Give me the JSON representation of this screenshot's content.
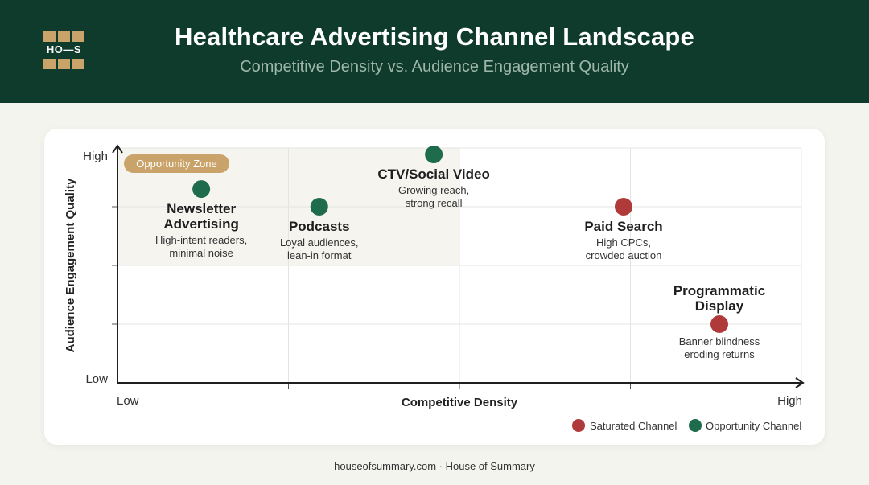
{
  "header": {
    "logo_text": "HO—S",
    "title": "Healthcare Advertising Channel Landscape",
    "subtitle": "Competitive Density vs. Audience Engagement Quality"
  },
  "colors": {
    "header_bg": "#0f3b2c",
    "accent_gold": "#c9a36a",
    "opportunity": "#1f6b4e",
    "saturated": "#b03a3a",
    "zone_fill": "#f5f4ef"
  },
  "chart_data": {
    "type": "scatter",
    "title": "Healthcare Advertising Channel Landscape",
    "subtitle": "Competitive Density vs. Audience Engagement Quality",
    "xlabel": "Competitive Density",
    "ylabel": "Audience Engagement Quality",
    "x_tick_labels": {
      "low": "Low",
      "high": "High"
    },
    "y_tick_labels": {
      "low": "Low",
      "high": "High"
    },
    "xlim": [
      0,
      4
    ],
    "ylim": [
      0,
      4
    ],
    "grid": true,
    "legend_position": "bottom-right",
    "legend": [
      {
        "category": "saturated",
        "label": "Saturated Channel"
      },
      {
        "category": "opportunity",
        "label": "Opportunity Channel"
      }
    ],
    "zone": {
      "label": "Opportunity Zone",
      "x_range": [
        0,
        2
      ],
      "y_range": [
        2,
        4
      ]
    },
    "points": [
      {
        "name": "Newsletter Advertising",
        "line1": "Newsletter",
        "line2": "Advertising",
        "desc1": "High-intent readers,",
        "desc2": "minimal noise",
        "x": 0.49,
        "y": 3.3,
        "category": "opportunity"
      },
      {
        "name": "Podcasts",
        "line1": "Podcasts",
        "line2": "",
        "desc1": "Loyal audiences,",
        "desc2": "lean-in format",
        "x": 1.18,
        "y": 3.0,
        "category": "opportunity"
      },
      {
        "name": "CTV/Social Video",
        "line1": "CTV/Social Video",
        "line2": "",
        "desc1": "Growing reach,",
        "desc2": "strong recall",
        "x": 1.85,
        "y": 3.89,
        "category": "opportunity"
      },
      {
        "name": "Paid Search",
        "line1": "Paid Search",
        "line2": "",
        "desc1": "High CPCs,",
        "desc2": "crowded auction",
        "x": 2.96,
        "y": 3.0,
        "category": "saturated"
      },
      {
        "name": "Programmatic Display",
        "line1": "Programmatic",
        "line2": "Display",
        "desc1": "Banner blindness",
        "desc2": "eroding returns",
        "x": 3.52,
        "y": 1.0,
        "category": "saturated"
      }
    ]
  },
  "footer": {
    "text": "houseofsummary.com · House of Summary"
  }
}
